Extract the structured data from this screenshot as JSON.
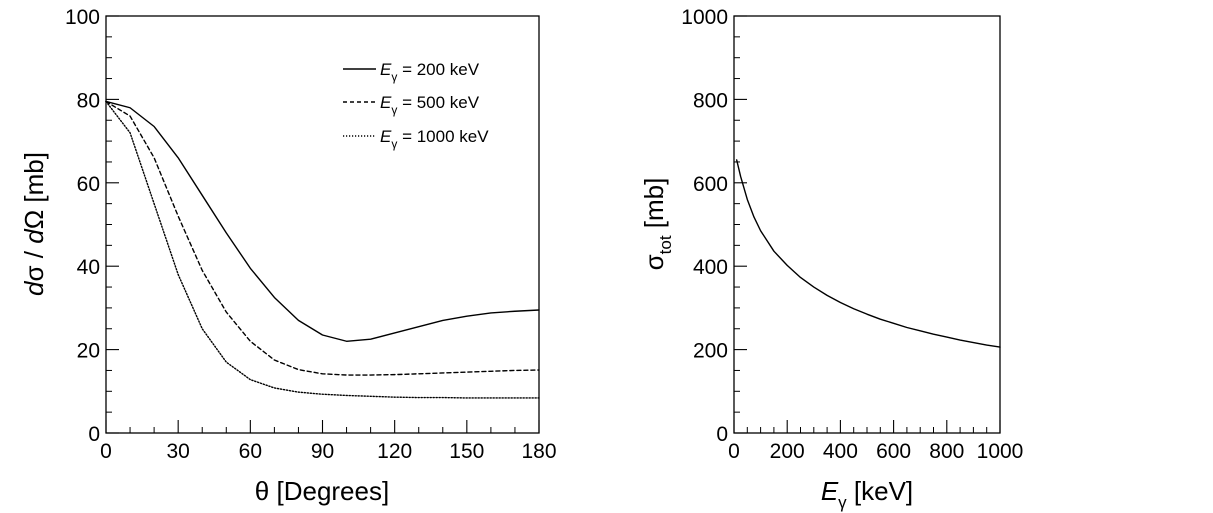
{
  "chart_data": [
    {
      "type": "line",
      "xlabel": "θ [Degrees]",
      "ylabel": "dσ / dΩ [mb]",
      "xlim": [
        0,
        180
      ],
      "ylim": [
        0,
        100
      ],
      "xticks": [
        "0",
        "30",
        "60",
        "90",
        "120",
        "150",
        "180"
      ],
      "yticks": [
        "0",
        "20",
        "40",
        "60",
        "80",
        "100"
      ],
      "grid": false,
      "legend_position": "top-right",
      "series": [
        {
          "name": "Eγ = 200 keV",
          "legend_var": "E",
          "legend_sub": "γ",
          "legend_rest": " = 200 keV",
          "style": "solid",
          "x": [
            0,
            10,
            20,
            30,
            40,
            50,
            60,
            70,
            80,
            90,
            100,
            110,
            120,
            130,
            140,
            150,
            160,
            170,
            180
          ],
          "y": [
            79.5,
            78.0,
            73.5,
            66.0,
            57.0,
            48.0,
            39.5,
            32.5,
            27.0,
            23.5,
            22.0,
            22.5,
            24.0,
            25.5,
            27.0,
            28.0,
            28.8,
            29.2,
            29.5
          ]
        },
        {
          "name": "Eγ = 500 keV",
          "legend_var": "E",
          "legend_sub": "γ",
          "legend_rest": " = 500 keV",
          "style": "dashed",
          "x": [
            0,
            10,
            20,
            30,
            40,
            50,
            60,
            70,
            80,
            90,
            100,
            110,
            120,
            130,
            140,
            150,
            160,
            170,
            180
          ],
          "y": [
            79.5,
            76.0,
            66.0,
            52.0,
            39.0,
            29.0,
            22.0,
            17.5,
            15.2,
            14.2,
            13.9,
            13.9,
            14.0,
            14.2,
            14.4,
            14.6,
            14.8,
            15.0,
            15.1
          ]
        },
        {
          "name": "Eγ = 1000 keV",
          "legend_var": "E",
          "legend_sub": "γ",
          "legend_rest": " = 1000 keV",
          "style": "dotted",
          "x": [
            0,
            10,
            20,
            30,
            40,
            50,
            60,
            70,
            80,
            90,
            100,
            110,
            120,
            130,
            140,
            150,
            160,
            170,
            180
          ],
          "y": [
            79.5,
            72.0,
            55.0,
            38.0,
            25.0,
            17.0,
            12.8,
            10.8,
            9.8,
            9.3,
            9.0,
            8.8,
            8.6,
            8.5,
            8.5,
            8.4,
            8.4,
            8.4,
            8.4
          ]
        }
      ]
    },
    {
      "type": "line",
      "xlabel": "Eγ [keV]",
      "xlabel_var": "E",
      "xlabel_sub": "γ",
      "xlabel_rest": " [keV]",
      "ylabel": "σtot [mb]",
      "ylabel_sym": "σ",
      "ylabel_sub": "tot",
      "ylabel_rest": " [mb]",
      "xlim": [
        0,
        1000
      ],
      "ylim": [
        0,
        1000
      ],
      "xticks": [
        "0",
        "200",
        "400",
        "600",
        "800",
        "1000"
      ],
      "yticks": [
        "0",
        "200",
        "400",
        "600",
        "800",
        "1000"
      ],
      "grid": false,
      "series": [
        {
          "style": "solid",
          "x": [
            10,
            25,
            50,
            75,
            100,
            150,
            200,
            250,
            300,
            350,
            400,
            450,
            500,
            550,
            600,
            650,
            700,
            750,
            800,
            850,
            900,
            950,
            1000
          ],
          "y": [
            655,
            615,
            560,
            518,
            485,
            436,
            402,
            373,
            350,
            330,
            313,
            298,
            285,
            273,
            263,
            253,
            245,
            237,
            230,
            223,
            217,
            211,
            206
          ]
        }
      ]
    }
  ]
}
